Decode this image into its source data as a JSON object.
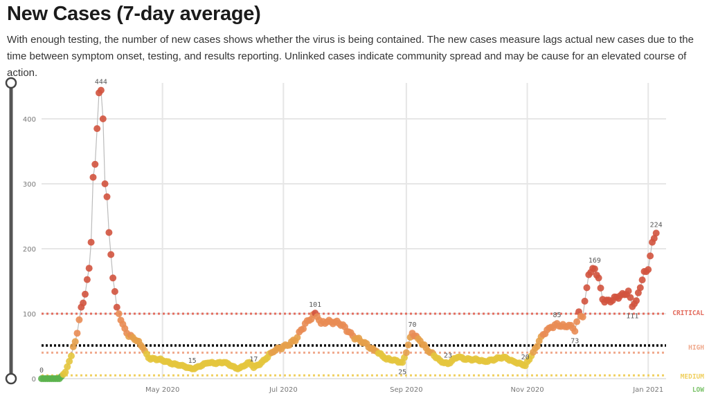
{
  "page": {
    "title": "New Cases (7-day average)",
    "subtitle": "With enough testing, the number of new cases shows whether the virus is being contained. The new cases measure lags actual new cases due to the time between symptom onset, testing, and results reporting. Unlinked cases indicate community spread and may be cause for an elevated course of action."
  },
  "colors": {
    "low": "#5bb24c",
    "medium": "#e4c53d",
    "high": "#e5a04a",
    "orange": "#e98c54",
    "critical": "#d2533e",
    "black_line": "#000000",
    "grid": "#e6e6e6",
    "series_line": "#bbbbbb"
  },
  "slider": {
    "icon": "range-handle-icon"
  },
  "chart_data": {
    "type": "scatter",
    "title": "New Cases (7-day average)",
    "xlabel": "",
    "ylabel": "",
    "ylim": [
      0,
      450
    ],
    "xlim": [
      "2020-03-01",
      "2021-01-10"
    ],
    "grid": true,
    "y_ticks": [
      0,
      100,
      200,
      300,
      400
    ],
    "x_ticks": [
      {
        "date": "2020-05-01",
        "label": "May 2020"
      },
      {
        "date": "2020-07-01",
        "label": "Jul 2020"
      },
      {
        "date": "2020-09-01",
        "label": "Sep 2020"
      },
      {
        "date": "2020-11-01",
        "label": "Nov 2020"
      },
      {
        "date": "2021-01-01",
        "label": "Jan 2021"
      }
    ],
    "thresholds": [
      {
        "label": "CRITICAL",
        "value": 100,
        "color": "#e36c5e"
      },
      {
        "label": "HIGH",
        "value": 40,
        "color": "#f0a98c"
      },
      {
        "label": "MEDIUM",
        "value": 5,
        "color": "#f0d060"
      },
      {
        "label": "LOW",
        "value": 0,
        "color": "#7cc36b"
      }
    ],
    "reference_line": {
      "value": 51,
      "color": "#000000"
    },
    "annotations": [
      {
        "date": "2020-03-01",
        "value": 0,
        "text": "0"
      },
      {
        "date": "2020-03-31",
        "value": 444,
        "text": "444"
      },
      {
        "date": "2020-05-16",
        "value": 15,
        "text": "15"
      },
      {
        "date": "2020-06-16",
        "value": 17,
        "text": "17"
      },
      {
        "date": "2020-07-17",
        "value": 101,
        "text": "101"
      },
      {
        "date": "2020-08-30",
        "value": 25,
        "text": "25"
      },
      {
        "date": "2020-09-04",
        "value": 70,
        "text": "70"
      },
      {
        "date": "2020-09-22",
        "value": 23,
        "text": "23"
      },
      {
        "date": "2020-10-31",
        "value": 20,
        "text": "20"
      },
      {
        "date": "2020-11-16",
        "value": 85,
        "text": "85"
      },
      {
        "date": "2020-11-25",
        "value": 73,
        "text": "73"
      },
      {
        "date": "2020-12-05",
        "value": 169,
        "text": "169"
      },
      {
        "date": "2020-12-24",
        "value": 111,
        "text": "111"
      },
      {
        "date": "2021-01-05",
        "value": 224,
        "text": "224"
      }
    ],
    "series": [
      {
        "anchors": [
          [
            "2020-03-01",
            0
          ],
          [
            "2020-03-10",
            0
          ],
          [
            "2020-03-13",
            10
          ],
          [
            "2020-03-16",
            35
          ],
          [
            "2020-03-19",
            70
          ],
          [
            "2020-03-21",
            110
          ],
          [
            "2020-03-23",
            130
          ],
          [
            "2020-03-25",
            170
          ],
          [
            "2020-03-26",
            210
          ],
          [
            "2020-03-27",
            310
          ],
          [
            "2020-03-28",
            330
          ],
          [
            "2020-03-29",
            385
          ],
          [
            "2020-03-30",
            440
          ],
          [
            "2020-03-31",
            444
          ],
          [
            "2020-04-01",
            400
          ],
          [
            "2020-04-02",
            300
          ],
          [
            "2020-04-03",
            280
          ],
          [
            "2020-04-04",
            225
          ],
          [
            "2020-04-06",
            155
          ],
          [
            "2020-04-08",
            110
          ],
          [
            "2020-04-10",
            90
          ],
          [
            "2020-04-13",
            70
          ],
          [
            "2020-04-17",
            60
          ],
          [
            "2020-04-21",
            48
          ],
          [
            "2020-04-24",
            32
          ],
          [
            "2020-05-01",
            28
          ],
          [
            "2020-05-08",
            22
          ],
          [
            "2020-05-16",
            15
          ],
          [
            "2020-05-24",
            24
          ],
          [
            "2020-06-01",
            25
          ],
          [
            "2020-06-08",
            15
          ],
          [
            "2020-06-14",
            25
          ],
          [
            "2020-06-16",
            17
          ],
          [
            "2020-06-20",
            25
          ],
          [
            "2020-06-25",
            40
          ],
          [
            "2020-07-01",
            50
          ],
          [
            "2020-07-07",
            58
          ],
          [
            "2020-07-12",
            85
          ],
          [
            "2020-07-17",
            101
          ],
          [
            "2020-07-20",
            85
          ],
          [
            "2020-07-24",
            90
          ],
          [
            "2020-07-29",
            85
          ],
          [
            "2020-08-03",
            72
          ],
          [
            "2020-08-10",
            55
          ],
          [
            "2020-08-17",
            42
          ],
          [
            "2020-08-22",
            30
          ],
          [
            "2020-08-27",
            28
          ],
          [
            "2020-08-30",
            25
          ],
          [
            "2020-09-01",
            40
          ],
          [
            "2020-09-04",
            70
          ],
          [
            "2020-09-08",
            58
          ],
          [
            "2020-09-13",
            40
          ],
          [
            "2020-09-18",
            28
          ],
          [
            "2020-09-22",
            23
          ],
          [
            "2020-09-27",
            33
          ],
          [
            "2020-10-03",
            30
          ],
          [
            "2020-10-10",
            27
          ],
          [
            "2020-10-16",
            30
          ],
          [
            "2020-10-21",
            33
          ],
          [
            "2020-10-26",
            25
          ],
          [
            "2020-10-31",
            20
          ],
          [
            "2020-11-03",
            35
          ],
          [
            "2020-11-07",
            58
          ],
          [
            "2020-11-12",
            78
          ],
          [
            "2020-11-16",
            85
          ],
          [
            "2020-11-20",
            80
          ],
          [
            "2020-11-23",
            82
          ],
          [
            "2020-11-25",
            73
          ],
          [
            "2020-11-27",
            103
          ],
          [
            "2020-11-29",
            95
          ],
          [
            "2020-12-01",
            140
          ],
          [
            "2020-12-02",
            160
          ],
          [
            "2020-12-05",
            169
          ],
          [
            "2020-12-07",
            155
          ],
          [
            "2020-12-09",
            122
          ],
          [
            "2020-12-13",
            118
          ],
          [
            "2020-12-18",
            128
          ],
          [
            "2020-12-22",
            135
          ],
          [
            "2020-12-24",
            111
          ],
          [
            "2020-12-26",
            120
          ],
          [
            "2020-12-28",
            140
          ],
          [
            "2020-12-30",
            165
          ],
          [
            "2021-01-01",
            168
          ],
          [
            "2021-01-03",
            210
          ],
          [
            "2021-01-05",
            224
          ]
        ]
      }
    ]
  }
}
